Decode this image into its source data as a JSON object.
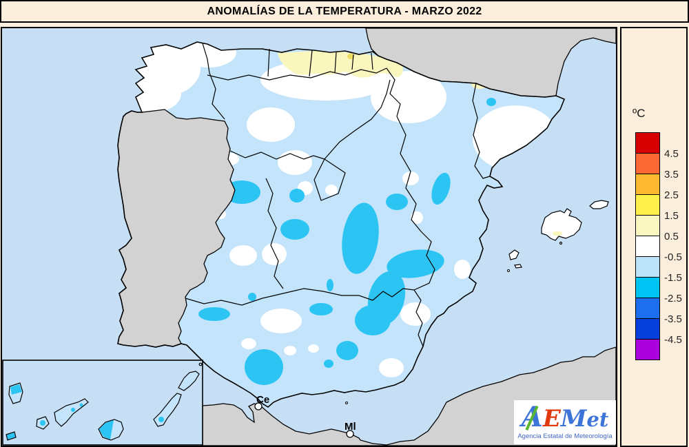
{
  "title": "ANOMALÍAS DE LA TEMPERATURA - MARZO 2022",
  "legend": {
    "unit": "ºC",
    "boxes": [
      {
        "color": "#D60000",
        "label": "4.5"
      },
      {
        "color": "#FB6A35",
        "label": "3.5"
      },
      {
        "color": "#FDB931",
        "label": "2.5"
      },
      {
        "color": "#FFF04A",
        "label": "1.5"
      },
      {
        "color": "#FAF8C0",
        "label": "0.5"
      },
      {
        "color": "#FFFFFF",
        "label": "-0.5"
      },
      {
        "color": "#BDE3FA",
        "label": "-1.5"
      },
      {
        "color": "#00C4F4",
        "label": "-2.5"
      },
      {
        "color": "#1E6EF0",
        "label": "-3.5"
      },
      {
        "color": "#0540DC",
        "label": "-4.5"
      },
      {
        "color": "#AA00DC",
        "label": ""
      }
    ]
  },
  "map": {
    "labels": {
      "ceuta": "Ce",
      "melilla": "Ml"
    },
    "colors": {
      "sea": "#C6DFF5",
      "land_gray": "#D2D2D2",
      "anomaly_light_blue": "#C3E4FA",
      "anomaly_cyan": "#2CC5F3",
      "anomaly_pale_yellow": "#FAF7BE",
      "anomaly_mustard": "#EEDC5F",
      "anomaly_white": "#FFFFFF"
    }
  },
  "logo": {
    "a": "A",
    "e": "E",
    "m": "M",
    "et": "et",
    "subtitle": "Agencia Estatal de Meteorología"
  }
}
